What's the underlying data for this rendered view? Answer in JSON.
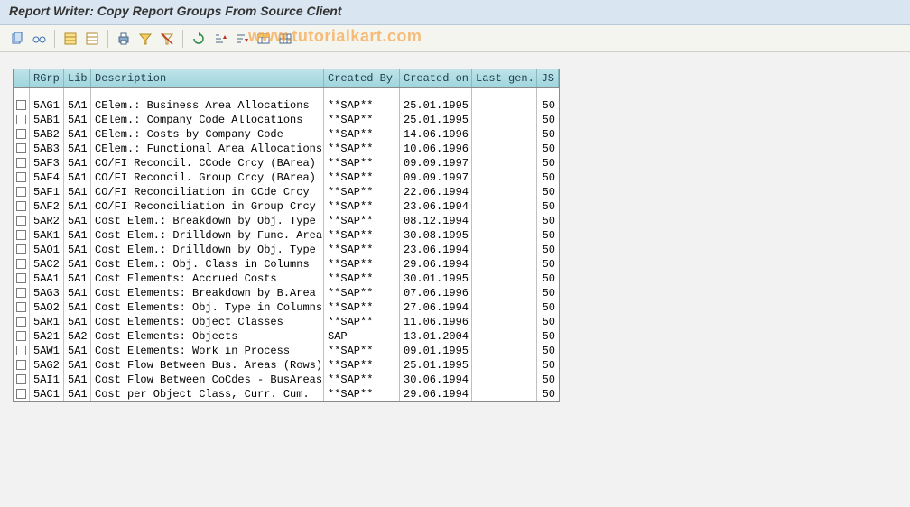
{
  "title": "Report Writer: Copy Report Groups From Source Client",
  "watermark": "www.tutorialkart.com",
  "columns": {
    "chk": "",
    "rgrp": "RGrp",
    "lib": "Lib",
    "desc": "Description",
    "by": "Created By",
    "on": "Created on",
    "last": "Last gen.",
    "js": "JS"
  },
  "rows": [
    {
      "rgrp": "5AG1",
      "lib": "5A1",
      "desc": "CElem.: Business Area Allocations",
      "by": "**SAP**",
      "on": "25.01.1995",
      "last": "",
      "js": "50"
    },
    {
      "rgrp": "5AB1",
      "lib": "5A1",
      "desc": "CElem.: Company Code Allocations",
      "by": "**SAP**",
      "on": "25.01.1995",
      "last": "",
      "js": "50"
    },
    {
      "rgrp": "5AB2",
      "lib": "5A1",
      "desc": "CElem.: Costs by Company Code",
      "by": "**SAP**",
      "on": "14.06.1996",
      "last": "",
      "js": "50"
    },
    {
      "rgrp": "5AB3",
      "lib": "5A1",
      "desc": "CElem.: Functional Area Allocations",
      "by": "**SAP**",
      "on": "10.06.1996",
      "last": "",
      "js": "50"
    },
    {
      "rgrp": "5AF3",
      "lib": "5A1",
      "desc": "CO/FI Reconcil. CCode Crcy (BArea)",
      "by": "**SAP**",
      "on": "09.09.1997",
      "last": "",
      "js": "50"
    },
    {
      "rgrp": "5AF4",
      "lib": "5A1",
      "desc": "CO/FI Reconcil. Group Crcy (BArea)",
      "by": "**SAP**",
      "on": "09.09.1997",
      "last": "",
      "js": "50"
    },
    {
      "rgrp": "5AF1",
      "lib": "5A1",
      "desc": "CO/FI Reconciliation in CCde Crcy",
      "by": "**SAP**",
      "on": "22.06.1994",
      "last": "",
      "js": "50"
    },
    {
      "rgrp": "5AF2",
      "lib": "5A1",
      "desc": "CO/FI Reconciliation in Group Crcy",
      "by": "**SAP**",
      "on": "23.06.1994",
      "last": "",
      "js": "50"
    },
    {
      "rgrp": "5AR2",
      "lib": "5A1",
      "desc": "Cost Elem.: Breakdown by Obj. Type",
      "by": "**SAP**",
      "on": "08.12.1994",
      "last": "",
      "js": "50"
    },
    {
      "rgrp": "5AK1",
      "lib": "5A1",
      "desc": "Cost Elem.: Drilldown by Func. Area",
      "by": "**SAP**",
      "on": "30.08.1995",
      "last": "",
      "js": "50"
    },
    {
      "rgrp": "5AO1",
      "lib": "5A1",
      "desc": "Cost Elem.: Drilldown by Obj. Type",
      "by": "**SAP**",
      "on": "23.06.1994",
      "last": "",
      "js": "50"
    },
    {
      "rgrp": "5AC2",
      "lib": "5A1",
      "desc": "Cost Elem.: Obj. Class in Columns",
      "by": "**SAP**",
      "on": "29.06.1994",
      "last": "",
      "js": "50"
    },
    {
      "rgrp": "5AA1",
      "lib": "5A1",
      "desc": "Cost Elements: Accrued Costs",
      "by": "**SAP**",
      "on": "30.01.1995",
      "last": "",
      "js": "50"
    },
    {
      "rgrp": "5AG3",
      "lib": "5A1",
      "desc": "Cost Elements: Breakdown by B.Area",
      "by": "**SAP**",
      "on": "07.06.1996",
      "last": "",
      "js": "50"
    },
    {
      "rgrp": "5AO2",
      "lib": "5A1",
      "desc": "Cost Elements: Obj. Type in Columns",
      "by": "**SAP**",
      "on": "27.06.1994",
      "last": "",
      "js": "50"
    },
    {
      "rgrp": "5AR1",
      "lib": "5A1",
      "desc": "Cost Elements: Object Classes",
      "by": "**SAP**",
      "on": "11.06.1996",
      "last": "",
      "js": "50"
    },
    {
      "rgrp": "5A21",
      "lib": "5A2",
      "desc": "Cost Elements: Objects",
      "by": "SAP",
      "on": "13.01.2004",
      "last": "",
      "js": "50"
    },
    {
      "rgrp": "5AW1",
      "lib": "5A1",
      "desc": "Cost Elements: Work in Process",
      "by": "**SAP**",
      "on": "09.01.1995",
      "last": "",
      "js": "50"
    },
    {
      "rgrp": "5AG2",
      "lib": "5A1",
      "desc": "Cost Flow Between Bus. Areas (Rows)",
      "by": "**SAP**",
      "on": "25.01.1995",
      "last": "",
      "js": "50"
    },
    {
      "rgrp": "5AI1",
      "lib": "5A1",
      "desc": "Cost Flow Between CoCdes - BusAreas",
      "by": "**SAP**",
      "on": "30.06.1994",
      "last": "",
      "js": "50"
    },
    {
      "rgrp": "5AC1",
      "lib": "5A1",
      "desc": "Cost per Object Class, Curr. Cum.",
      "by": "**SAP**",
      "on": "29.06.1994",
      "last": "",
      "js": "50"
    }
  ],
  "colors": {
    "title_bg": "#d9e5f0",
    "header_bg_top": "#bde3e8",
    "header_bg_bot": "#a1d6de",
    "border": "#8a8a88",
    "watermark": "#f5a84f"
  }
}
